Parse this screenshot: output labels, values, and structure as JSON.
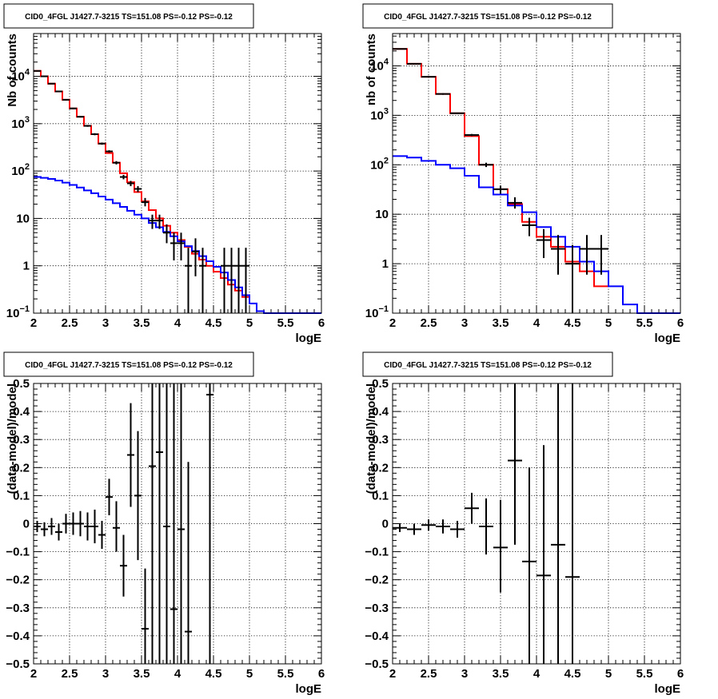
{
  "chart_data": [
    {
      "type": "step+errorbar",
      "title": "CID0_4FGL J1427.7-3215 TS=151.08 PS=-0.12 PS=-0.12",
      "xlabel": "logE",
      "ylabel": "Nb of counts",
      "xlim": [
        2,
        6
      ],
      "ylim": [
        0.1,
        80000
      ],
      "ylog": true,
      "grid": true,
      "xticks": [
        "2",
        "2.5",
        "3",
        "3.5",
        "4",
        "4.5",
        "5",
        "5.5",
        "6"
      ],
      "yticks": [
        {
          "v": 0.1,
          "label": "10",
          "sup": "−1"
        },
        {
          "v": 1,
          "label": "1",
          "sup": ""
        },
        {
          "v": 10,
          "label": "10",
          "sup": ""
        },
        {
          "v": 100,
          "label": "10",
          "sup": "2"
        },
        {
          "v": 1000,
          "label": "10",
          "sup": "3"
        },
        {
          "v": 10000,
          "label": "10",
          "sup": "4"
        }
      ],
      "series": [
        {
          "color": "#ff0000",
          "bin_width": 0.1,
          "x0": [
            2.0,
            2.1,
            2.2,
            2.3,
            2.4,
            2.5,
            2.6,
            2.7,
            2.8,
            2.9,
            3.0,
            3.1,
            3.2,
            3.3,
            3.4,
            3.5,
            3.6,
            3.7,
            3.8,
            3.9,
            4.0,
            4.1,
            4.2,
            4.3,
            4.4,
            4.5,
            4.6,
            4.7,
            4.8,
            4.9
          ],
          "values": [
            13000,
            10000,
            7000,
            4800,
            3200,
            2100,
            1400,
            900,
            600,
            380,
            240,
            150,
            90,
            58,
            36,
            23,
            15,
            10,
            7,
            5,
            3.5,
            2.5,
            1.8,
            1.35,
            1.0,
            0.75,
            0.55,
            0.4,
            0.3,
            0.22
          ]
        },
        {
          "color": "#0000ff",
          "bin_width": 0.1,
          "x0": [
            2.0,
            2.1,
            2.2,
            2.3,
            2.4,
            2.5,
            2.6,
            2.7,
            2.8,
            2.9,
            3.0,
            3.1,
            3.2,
            3.3,
            3.4,
            3.5,
            3.6,
            3.7,
            3.8,
            3.9,
            4.0,
            4.1,
            4.2,
            4.3,
            4.4,
            4.5,
            4.6,
            4.7,
            4.8,
            4.9,
            5.0,
            5.1,
            5.2,
            5.3,
            5.4,
            5.5,
            5.6,
            5.7,
            5.8,
            5.9
          ],
          "values": [
            75,
            72,
            68,
            63,
            57,
            51,
            45,
            39,
            34,
            29,
            25,
            21,
            17.5,
            14.5,
            12,
            10,
            8,
            6.5,
            5.2,
            4.2,
            3.3,
            2.6,
            2.05,
            1.6,
            1.25,
            0.95,
            0.72,
            0.5,
            0.35,
            0.24,
            0.16,
            0.11,
            0.1,
            0.1,
            0.1,
            0.1,
            0.1,
            0.1,
            0.1,
            0.1
          ]
        }
      ],
      "points": [
        {
          "x": 2.05,
          "y": 13000,
          "lo": 12800,
          "hi": 13200
        },
        {
          "x": 2.15,
          "y": 10000,
          "lo": 9800,
          "hi": 10200
        },
        {
          "x": 2.25,
          "y": 7000,
          "lo": 6850,
          "hi": 7150
        },
        {
          "x": 2.35,
          "y": 4800,
          "lo": 4680,
          "hi": 4920
        },
        {
          "x": 2.45,
          "y": 3200,
          "lo": 3100,
          "hi": 3300
        },
        {
          "x": 2.55,
          "y": 2100,
          "lo": 2030,
          "hi": 2170
        },
        {
          "x": 2.65,
          "y": 1400,
          "lo": 1350,
          "hi": 1450
        },
        {
          "x": 2.75,
          "y": 900,
          "lo": 860,
          "hi": 940
        },
        {
          "x": 2.85,
          "y": 600,
          "lo": 570,
          "hi": 630
        },
        {
          "x": 2.95,
          "y": 380,
          "lo": 360,
          "hi": 400
        },
        {
          "x": 3.05,
          "y": 260,
          "lo": 245,
          "hi": 275
        },
        {
          "x": 3.15,
          "y": 150,
          "lo": 138,
          "hi": 162
        },
        {
          "x": 3.25,
          "y": 75,
          "lo": 67,
          "hi": 83
        },
        {
          "x": 3.35,
          "y": 55,
          "lo": 48,
          "hi": 62
        },
        {
          "x": 3.45,
          "y": 42,
          "lo": 36,
          "hi": 48
        },
        {
          "x": 3.55,
          "y": 22,
          "lo": 18,
          "hi": 27
        },
        {
          "x": 3.65,
          "y": 9,
          "lo": 6,
          "hi": 12
        },
        {
          "x": 3.75,
          "y": 9,
          "lo": 6,
          "hi": 12
        },
        {
          "x": 3.85,
          "y": 5,
          "lo": 3,
          "hi": 7.5
        },
        {
          "x": 3.95,
          "y": 3,
          "lo": 1.3,
          "hi": 5
        },
        {
          "x": 4.05,
          "y": 3,
          "lo": 1.3,
          "hi": 5
        },
        {
          "x": 4.15,
          "y": 1,
          "lo": 0.1,
          "hi": 2.4
        },
        {
          "x": 4.25,
          "y": 2,
          "lo": 0.6,
          "hi": 3.8
        },
        {
          "x": 4.35,
          "y": 1,
          "lo": 0.1,
          "hi": 2.4
        },
        {
          "x": 4.65,
          "y": 1,
          "lo": 0.1,
          "hi": 2.4
        },
        {
          "x": 4.75,
          "y": 1,
          "lo": 0.1,
          "hi": 2.4
        },
        {
          "x": 4.85,
          "y": 1,
          "lo": 0.1,
          "hi": 2.4
        },
        {
          "x": 4.95,
          "y": 1,
          "lo": 0.1,
          "hi": 2.4
        }
      ],
      "pt_halfwidth": 0.05
    },
    {
      "type": "step+errorbar",
      "title": "CID0_4FGL J1427.7-3215 TS=151.08 PS=-0.12 PS=-0.12",
      "xlabel": "logE",
      "ylabel": "nb of counts",
      "xlim": [
        2,
        6
      ],
      "ylim": [
        0.1,
        45000
      ],
      "ylog": true,
      "grid": true,
      "xticks": [
        "2",
        "2.5",
        "3",
        "3.5",
        "4",
        "4.5",
        "5",
        "5.5",
        "6"
      ],
      "yticks": [
        {
          "v": 0.1,
          "label": "10",
          "sup": "−1"
        },
        {
          "v": 1,
          "label": "1",
          "sup": ""
        },
        {
          "v": 10,
          "label": "10",
          "sup": ""
        },
        {
          "v": 100,
          "label": "10",
          "sup": "2"
        },
        {
          "v": 1000,
          "label": "10",
          "sup": "3"
        },
        {
          "v": 10000,
          "label": "10",
          "sup": "4"
        }
      ],
      "series": [
        {
          "color": "#ff0000",
          "bin_width": 0.2,
          "x0": [
            2.0,
            2.2,
            2.4,
            2.6,
            2.8,
            3.0,
            3.2,
            3.4,
            3.6,
            3.8,
            4.0,
            4.2,
            4.4,
            4.6,
            4.8
          ],
          "values": [
            22000,
            11000,
            6000,
            2700,
            1100,
            380,
            100,
            32,
            16,
            7,
            3.5,
            2.2,
            1.1,
            0.7,
            0.35
          ]
        },
        {
          "color": "#0000ff",
          "bin_width": 0.2,
          "x0": [
            2.0,
            2.2,
            2.4,
            2.6,
            2.8,
            3.0,
            3.2,
            3.4,
            3.6,
            3.8,
            4.0,
            4.2,
            4.4,
            4.6,
            4.8,
            5.0,
            5.2,
            5.4,
            5.6,
            5.8
          ],
          "values": [
            150,
            140,
            120,
            100,
            85,
            60,
            35,
            25,
            15,
            11,
            5.5,
            3.5,
            2.2,
            1.1,
            0.7,
            0.35,
            0.15,
            0.1,
            0.1,
            0.1
          ]
        }
      ],
      "points": [
        {
          "x": 2.1,
          "y": 22000,
          "lo": 21700,
          "hi": 22300
        },
        {
          "x": 2.3,
          "y": 11000,
          "lo": 10800,
          "hi": 11200
        },
        {
          "x": 2.5,
          "y": 6000,
          "lo": 5850,
          "hi": 6150
        },
        {
          "x": 2.7,
          "y": 2700,
          "lo": 2600,
          "hi": 2800
        },
        {
          "x": 2.9,
          "y": 1100,
          "lo": 1065,
          "hi": 1135
        },
        {
          "x": 3.1,
          "y": 400,
          "lo": 380,
          "hi": 420
        },
        {
          "x": 3.3,
          "y": 100,
          "lo": 90,
          "hi": 110
        },
        {
          "x": 3.5,
          "y": 32,
          "lo": 26,
          "hi": 38
        },
        {
          "x": 3.7,
          "y": 17,
          "lo": 13,
          "hi": 22
        },
        {
          "x": 3.9,
          "y": 6,
          "lo": 3.6,
          "hi": 8.5
        },
        {
          "x": 4.1,
          "y": 3,
          "lo": 1.3,
          "hi": 5
        },
        {
          "x": 4.3,
          "y": 2,
          "lo": 0.6,
          "hi": 3.8
        },
        {
          "x": 4.5,
          "y": 1,
          "lo": 0.1,
          "hi": 2.4
        },
        {
          "x": 4.7,
          "y": 2,
          "lo": 0.6,
          "hi": 3.8
        },
        {
          "x": 4.9,
          "y": 2,
          "lo": 0.6,
          "hi": 3.8
        }
      ],
      "pt_halfwidth": 0.1
    },
    {
      "type": "errorbar",
      "title": "CID0_4FGL J1427.7-3215 TS=151.08 PS=-0.12 PS=-0.12",
      "xlabel": "logE",
      "ylabel": "(data-model)/model",
      "xlim": [
        2,
        6
      ],
      "ylim": [
        -0.5,
        0.5
      ],
      "ylog": false,
      "grid": true,
      "xticks": [
        "2",
        "2.5",
        "3",
        "3.5",
        "4",
        "4.5",
        "5",
        "5.5",
        "6"
      ],
      "yticks": [
        {
          "v": -0.5,
          "label": "−0.5"
        },
        {
          "v": -0.4,
          "label": "−0.4"
        },
        {
          "v": -0.3,
          "label": "−0.3"
        },
        {
          "v": -0.2,
          "label": "−0.2"
        },
        {
          "v": -0.1,
          "label": "−0.1"
        },
        {
          "v": 0,
          "label": "0"
        },
        {
          "v": 0.1,
          "label": "0.1"
        },
        {
          "v": 0.2,
          "label": "0.2"
        },
        {
          "v": 0.3,
          "label": "0.3"
        },
        {
          "v": 0.4,
          "label": "0.4"
        },
        {
          "v": 0.5,
          "label": "0.5"
        }
      ],
      "points": [
        {
          "x": 2.05,
          "y": -0.01,
          "lo": -0.03,
          "hi": 0.01
        },
        {
          "x": 2.15,
          "y": -0.02,
          "lo": -0.045,
          "hi": 0.005
        },
        {
          "x": 2.25,
          "y": -0.01,
          "lo": -0.04,
          "hi": 0.02
        },
        {
          "x": 2.35,
          "y": -0.03,
          "lo": -0.06,
          "hi": 0.0
        },
        {
          "x": 2.45,
          "y": 0.0,
          "lo": -0.035,
          "hi": 0.035
        },
        {
          "x": 2.55,
          "y": 0.0,
          "lo": -0.04,
          "hi": 0.04
        },
        {
          "x": 2.65,
          "y": 0.0,
          "lo": -0.045,
          "hi": 0.045
        },
        {
          "x": 2.75,
          "y": -0.01,
          "lo": -0.06,
          "hi": 0.04
        },
        {
          "x": 2.85,
          "y": -0.01,
          "lo": -0.07,
          "hi": 0.05
        },
        {
          "x": 2.95,
          "y": -0.04,
          "lo": -0.09,
          "hi": 0.01
        },
        {
          "x": 3.05,
          "y": 0.095,
          "lo": 0.03,
          "hi": 0.16
        },
        {
          "x": 3.15,
          "y": -0.015,
          "lo": -0.1,
          "hi": 0.08
        },
        {
          "x": 3.25,
          "y": -0.15,
          "lo": -0.26,
          "hi": -0.04
        },
        {
          "x": 3.35,
          "y": 0.245,
          "lo": 0.06,
          "hi": 0.43
        },
        {
          "x": 3.45,
          "y": 0.1,
          "lo": -0.13,
          "hi": 0.33
        },
        {
          "x": 3.55,
          "y": -0.375,
          "lo": -0.5,
          "hi": -0.16
        },
        {
          "x": 3.65,
          "y": 0.205,
          "lo": -0.5,
          "hi": 0.5
        },
        {
          "x": 3.75,
          "y": 0.255,
          "lo": -0.5,
          "hi": 0.5
        },
        {
          "x": 3.85,
          "y": -0.01,
          "lo": -0.5,
          "hi": 0.5
        },
        {
          "x": 3.95,
          "y": -0.305,
          "lo": -0.5,
          "hi": 0.5
        },
        {
          "x": 4.05,
          "y": -0.02,
          "lo": -0.5,
          "hi": 0.5
        },
        {
          "x": 4.15,
          "y": -0.385,
          "lo": -0.5,
          "hi": 0.22
        },
        {
          "x": 4.45,
          "y": 0.46,
          "lo": -0.5,
          "hi": 0.5
        }
      ],
      "pt_halfwidth": 0.05
    },
    {
      "type": "errorbar",
      "title": "CID0_4FGL J1427.7-3215 TS=151.08 PS=-0.12 PS=-0.12",
      "xlabel": "logE",
      "ylabel": "(data-model)/model",
      "xlim": [
        2,
        6
      ],
      "ylim": [
        -0.5,
        0.5
      ],
      "ylog": false,
      "grid": true,
      "xticks": [
        "2",
        "2.5",
        "3",
        "3.5",
        "4",
        "4.5",
        "5",
        "5.5",
        "6"
      ],
      "yticks": [
        {
          "v": -0.5,
          "label": "−0.5"
        },
        {
          "v": -0.4,
          "label": "−0.4"
        },
        {
          "v": -0.3,
          "label": "−0.3"
        },
        {
          "v": -0.2,
          "label": "−0.2"
        },
        {
          "v": -0.1,
          "label": "−0.1"
        },
        {
          "v": 0,
          "label": "0"
        },
        {
          "v": 0.1,
          "label": "0.1"
        },
        {
          "v": 0.2,
          "label": "0.2"
        },
        {
          "v": 0.3,
          "label": "0.3"
        },
        {
          "v": 0.4,
          "label": "0.4"
        },
        {
          "v": 0.5,
          "label": "0.5"
        }
      ],
      "points": [
        {
          "x": 2.1,
          "y": -0.015,
          "lo": -0.03,
          "hi": 0.0
        },
        {
          "x": 2.3,
          "y": -0.02,
          "lo": -0.04,
          "hi": 0.0
        },
        {
          "x": 2.5,
          "y": -0.005,
          "lo": -0.025,
          "hi": 0.015
        },
        {
          "x": 2.7,
          "y": -0.01,
          "lo": -0.035,
          "hi": 0.015
        },
        {
          "x": 2.9,
          "y": -0.02,
          "lo": -0.05,
          "hi": 0.01
        },
        {
          "x": 3.1,
          "y": 0.055,
          "lo": 0.0,
          "hi": 0.11
        },
        {
          "x": 3.3,
          "y": -0.01,
          "lo": -0.11,
          "hi": 0.09
        },
        {
          "x": 3.5,
          "y": -0.085,
          "lo": -0.245,
          "hi": 0.085
        },
        {
          "x": 3.7,
          "y": 0.225,
          "lo": -0.075,
          "hi": 0.5
        },
        {
          "x": 3.9,
          "y": -0.135,
          "lo": -0.5,
          "hi": 0.2
        },
        {
          "x": 4.1,
          "y": -0.185,
          "lo": -0.5,
          "hi": 0.28
        },
        {
          "x": 4.3,
          "y": -0.075,
          "lo": -0.5,
          "hi": 0.5
        },
        {
          "x": 4.5,
          "y": -0.19,
          "lo": -0.5,
          "hi": 0.5
        }
      ],
      "pt_halfwidth": 0.1
    }
  ]
}
